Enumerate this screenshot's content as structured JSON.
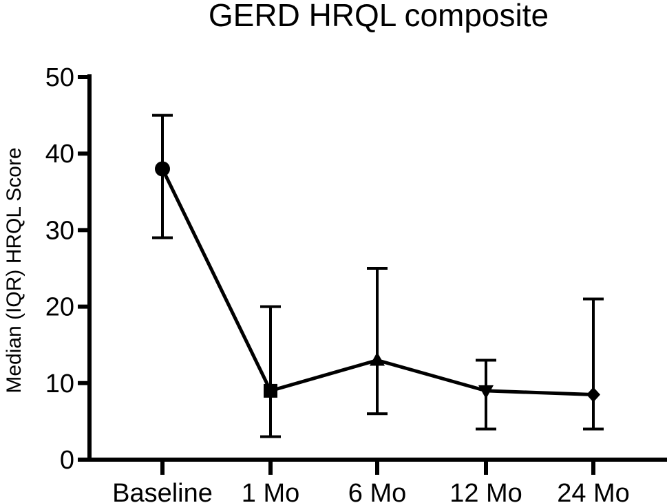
{
  "chart_data": {
    "type": "line",
    "title": "GERD HRQL composite",
    "xlabel": "",
    "ylabel": "Median (IQR) HRQL Score",
    "categories": [
      "Baseline",
      "1 Mo",
      "6 Mo",
      "12 Mo",
      "24 Mo"
    ],
    "ylim": [
      0,
      50
    ],
    "yticks": [
      0,
      10,
      20,
      30,
      40,
      50
    ],
    "grid": false,
    "series": [
      {
        "values": [
          38,
          9,
          13,
          9,
          8.5
        ],
        "lower": [
          29,
          3,
          6,
          4,
          4
        ],
        "upper": [
          45,
          20,
          25,
          13,
          21
        ],
        "markers": [
          "circle",
          "square",
          "triangle-up",
          "triangle-down",
          "diamond"
        ],
        "color": "#000000"
      }
    ]
  }
}
